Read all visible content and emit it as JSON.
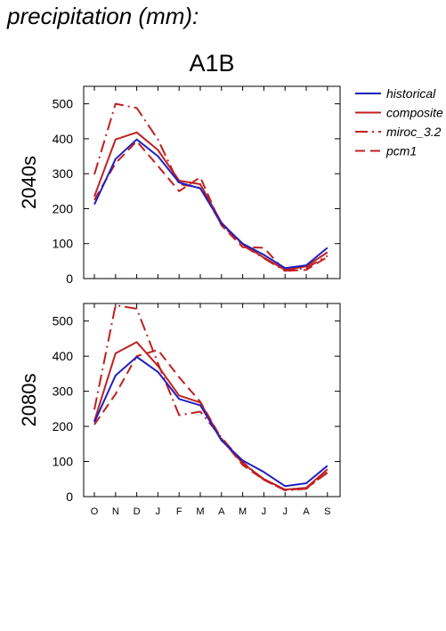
{
  "title": "precipitation (mm):",
  "scenario": "A1B",
  "colors": {
    "historical": "#2020c0",
    "models": "#c02020"
  },
  "legend": [
    {
      "name": "historical",
      "color": "#2020c0",
      "dash": "solid"
    },
    {
      "name": "composite",
      "color": "#c02020",
      "dash": "solid"
    },
    {
      "name": "miroc_3.2",
      "color": "#c02020",
      "dash": "dashdot"
    },
    {
      "name": "pcm1",
      "color": "#c02020",
      "dash": "dashed"
    }
  ],
  "chart_data": [
    {
      "type": "line",
      "title": "2040s",
      "xlabel": "",
      "ylabel": "",
      "categories": [
        "O",
        "N",
        "D",
        "J",
        "F",
        "M",
        "A",
        "M",
        "J",
        "J",
        "A",
        "S"
      ],
      "ylim": [
        0,
        550
      ],
      "yticks": [
        0,
        100,
        200,
        300,
        400,
        500
      ],
      "legend_position": "right",
      "grid": false,
      "series": [
        {
          "name": "historical",
          "values": [
            212,
            342,
            398,
            350,
            275,
            258,
            158,
            100,
            68,
            30,
            38,
            88
          ]
        },
        {
          "name": "composite",
          "values": [
            235,
            398,
            418,
            368,
            280,
            270,
            160,
            98,
            60,
            25,
            35,
            75
          ]
        },
        {
          "name": "miroc_3.2",
          "values": [
            298,
            500,
            488,
            398,
            270,
            260,
            155,
            95,
            58,
            22,
            30,
            65
          ]
        },
        {
          "name": "pcm1",
          "values": [
            225,
            330,
            393,
            322,
            250,
            290,
            152,
            90,
            88,
            22,
            25,
            62
          ]
        }
      ]
    },
    {
      "type": "line",
      "title": "2080s",
      "xlabel": "",
      "ylabel": "",
      "categories": [
        "O",
        "N",
        "D",
        "J",
        "F",
        "M",
        "A",
        "M",
        "J",
        "J",
        "A",
        "S"
      ],
      "ylim": [
        0,
        550
      ],
      "yticks": [
        0,
        100,
        200,
        300,
        400,
        500
      ],
      "legend_position": "right",
      "grid": false,
      "series": [
        {
          "name": "historical",
          "values": [
            212,
            345,
            398,
            355,
            278,
            260,
            160,
            103,
            70,
            30,
            38,
            88
          ]
        },
        {
          "name": "composite",
          "values": [
            215,
            408,
            440,
            372,
            288,
            268,
            162,
            95,
            50,
            20,
            25,
            78
          ]
        },
        {
          "name": "miroc_3.2",
          "values": [
            248,
            545,
            535,
            380,
            232,
            242,
            168,
            98,
            48,
            18,
            22,
            70
          ]
        },
        {
          "name": "pcm1",
          "values": [
            205,
            292,
            400,
            418,
            340,
            270,
            165,
            90,
            48,
            18,
            24,
            68
          ]
        }
      ]
    }
  ]
}
